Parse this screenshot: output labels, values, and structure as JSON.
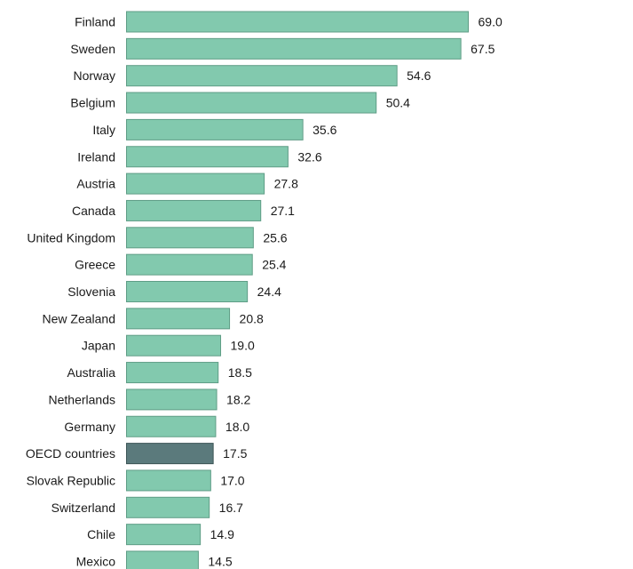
{
  "chart_data": {
    "type": "bar",
    "orientation": "horizontal",
    "title": "",
    "xlabel": "",
    "ylabel": "",
    "xlim": [
      0,
      75
    ],
    "grid": false,
    "legend": "none",
    "categories": [
      "Finland",
      "Sweden",
      "Norway",
      "Belgium",
      "Italy",
      "Ireland",
      "Austria",
      "Canada",
      "United Kingdom",
      "Greece",
      "Slovenia",
      "New Zealand",
      "Japan",
      "Australia",
      "Netherlands",
      "Germany",
      "OECD countries",
      "Slovak Republic",
      "Switzerland",
      "Chile",
      "Mexico"
    ],
    "values": [
      69.0,
      67.5,
      54.6,
      50.4,
      35.6,
      32.6,
      27.8,
      27.1,
      25.6,
      25.4,
      24.4,
      20.8,
      19.0,
      18.5,
      18.2,
      18.0,
      17.5,
      17.0,
      16.7,
      14.9,
      14.5
    ],
    "value_labels": [
      "69.0",
      "67.5",
      "54.6",
      "50.4",
      "35.6",
      "32.6",
      "27.8",
      "27.1",
      "25.6",
      "25.4",
      "24.4",
      "20.8",
      "19.0",
      "18.5",
      "18.2",
      "18.0",
      "17.5",
      "17.0",
      "16.7",
      "14.9",
      "14.5"
    ],
    "highlight_category": "OECD countries",
    "colors": {
      "bar": "#82c9ae",
      "bar_border": "#5f9d86",
      "highlight": "#5b7a7c",
      "highlight_border": "#3d5657",
      "text": "#1a1a1a"
    }
  }
}
